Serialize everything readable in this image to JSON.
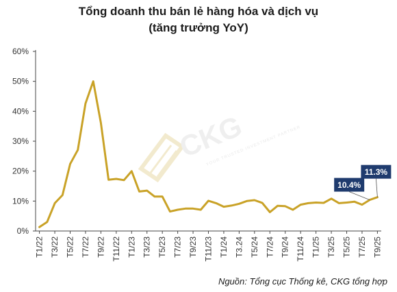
{
  "chart_data": {
    "type": "line",
    "title": "Tổng doanh thu bán lẻ hàng hóa và dịch vụ",
    "subtitle": "(tăng trưởng YoY)",
    "xlabel": "",
    "ylabel": "",
    "ylim": [
      0,
      60
    ],
    "yticks": [
      0,
      10,
      20,
      30,
      40,
      50,
      60
    ],
    "ytick_labels": [
      "0%",
      "10%",
      "20%",
      "30%",
      "40%",
      "50%",
      "60%"
    ],
    "grid": false,
    "legend": "none",
    "line_color": "#c9a227",
    "callout_color": "#1f3b6e",
    "x": [
      "T1/22",
      "T2/22",
      "T3/22",
      "T4/22",
      "T5/22",
      "T6/22",
      "T7/22",
      "T8/22",
      "T9/22",
      "T10/22",
      "T11/22",
      "T12/22",
      "T1/23",
      "T2/23",
      "T3/23",
      "T4/23",
      "T5/23",
      "T6/23",
      "T7/23",
      "T8/23",
      "T9/23",
      "T10/23",
      "T11/23",
      "T12/23",
      "T1/24",
      "T2/24",
      "T3.24",
      "T4/24",
      "T5/24",
      "T6/24",
      "T7/24",
      "T8/24",
      "T9/24",
      "T10/24",
      "T11/24",
      "T12/24",
      "T1/25",
      "T2/25",
      "T3/25",
      "T4/25",
      "T5/25",
      "T6/25",
      "T7/25",
      "T8/25",
      "T9/25"
    ],
    "tick_labels_shown": [
      "T1/22",
      "T3/22",
      "T5/22",
      "T7/22",
      "T9/22",
      "T11/22",
      "T1/23",
      "T3/23",
      "T5/23",
      "T7/23",
      "T9/23",
      "T11/23",
      "T1/24",
      "T3.24",
      "T5/24",
      "T7/24",
      "T9/24",
      "T11/24",
      "T1/25",
      "T3/25",
      "T5/25",
      "T7/25",
      "T9/25"
    ],
    "series": [
      {
        "values": [
          1.3,
          3.0,
          9.3,
          12.0,
          22.4,
          27.1,
          42.6,
          50.0,
          36.1,
          17.1,
          17.4,
          17.0,
          20.0,
          13.2,
          13.5,
          11.5,
          11.5,
          6.5,
          7.1,
          7.5,
          7.5,
          7.1,
          10.1,
          9.3,
          8.1,
          8.5,
          9.1,
          10.0,
          10.3,
          9.4,
          6.3,
          8.4,
          8.3,
          7.1,
          8.8,
          9.3,
          9.5,
          9.4,
          10.8,
          9.3,
          9.5,
          9.8,
          8.8,
          10.4,
          11.3
        ]
      }
    ],
    "annotations": [
      {
        "x": "T8/25",
        "label": "10.4%"
      },
      {
        "x": "T9/25",
        "label": "11.3%"
      }
    ]
  },
  "source_note": "Nguồn: Tổng cục Thống kê, CKG tổng hợp",
  "watermark": {
    "brand": "CKG",
    "tagline": "YOUR TRUSTED INVESTMENT PARTNER"
  }
}
